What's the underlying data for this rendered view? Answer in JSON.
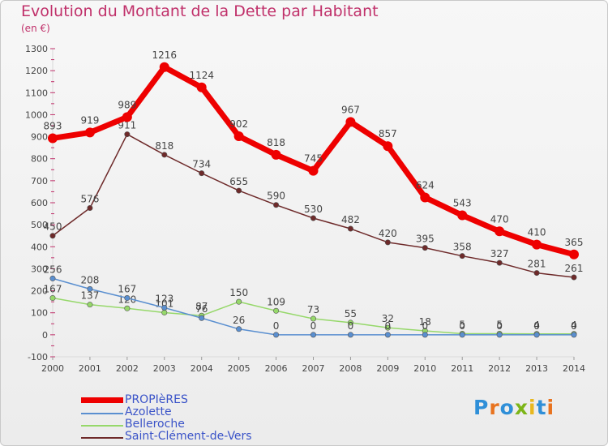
{
  "header": {
    "title": "Evolution du Montant de la Dette par Habitant",
    "subtitle": "(en €)"
  },
  "brand": {
    "letters": [
      "P",
      "r",
      "o",
      "x",
      "i",
      "t",
      "i"
    ],
    "colors": [
      "#2f8fd8",
      "#e8731f",
      "#2f8fd8",
      "#7cb518",
      "#e8b81f",
      "#2f8fd8",
      "#e8731f"
    ]
  },
  "chart_data": {
    "type": "line",
    "x": [
      "2000",
      "2001",
      "2002",
      "2003",
      "2004",
      "2005",
      "2006",
      "2007",
      "2008",
      "2009",
      "2010",
      "2011",
      "2012",
      "2013",
      "2014"
    ],
    "ylim": [
      -100,
      1300
    ],
    "yticks": [
      "-100",
      "0",
      "100",
      "200",
      "300",
      "400",
      "500",
      "600",
      "700",
      "800",
      "900",
      "1000",
      "1100",
      "1200",
      "1300"
    ],
    "grid": false,
    "legend_position": "bottom-left",
    "series": [
      {
        "name": "Saint-Clément-de-Vers",
        "color": "#6e2a2a",
        "values": [
          450,
          576,
          911,
          818,
          734,
          655,
          590,
          530,
          482,
          420,
          395,
          358,
          327,
          281,
          261
        ],
        "labels": [
          "450",
          "576",
          "911",
          "818",
          "734",
          "655",
          "590",
          "530",
          "482",
          "420",
          "395",
          "358",
          "327",
          "281",
          "261"
        ]
      },
      {
        "name": "Belleroche",
        "color": "#96d86a",
        "values": [
          167,
          137,
          120,
          101,
          87,
          150,
          109,
          73,
          55,
          32,
          18,
          5,
          5,
          4,
          4
        ],
        "labels": [
          "167",
          "137",
          "120",
          "101",
          "87",
          "150",
          "109",
          "73",
          "55",
          "32",
          "18",
          "5",
          "5",
          "4",
          "4"
        ]
      },
      {
        "name": "Azolette",
        "color": "#5a8fd0",
        "values": [
          256,
          208,
          167,
          123,
          76,
          26,
          0,
          0,
          0,
          0,
          0,
          0,
          0,
          0,
          0
        ],
        "labels": [
          "256",
          "208",
          "167",
          "123",
          "76",
          "26",
          "0",
          "0",
          "0",
          "0",
          "0",
          "0",
          "0",
          "0",
          "0"
        ]
      },
      {
        "name": "PROPIèRES",
        "color": "#ee0000",
        "values": [
          893,
          919,
          989,
          1216,
          1124,
          902,
          818,
          745,
          967,
          857,
          624,
          543,
          470,
          410,
          365
        ],
        "labels": [
          "893",
          "919",
          "989",
          "1216",
          "1124",
          "902",
          "818",
          "745",
          "967",
          "857",
          "624",
          "543",
          "470",
          "410",
          "365"
        ]
      }
    ],
    "legend_order": [
      "PROPIèRES",
      "Azolette",
      "Belleroche",
      "Saint-Clément-de-Vers"
    ]
  }
}
